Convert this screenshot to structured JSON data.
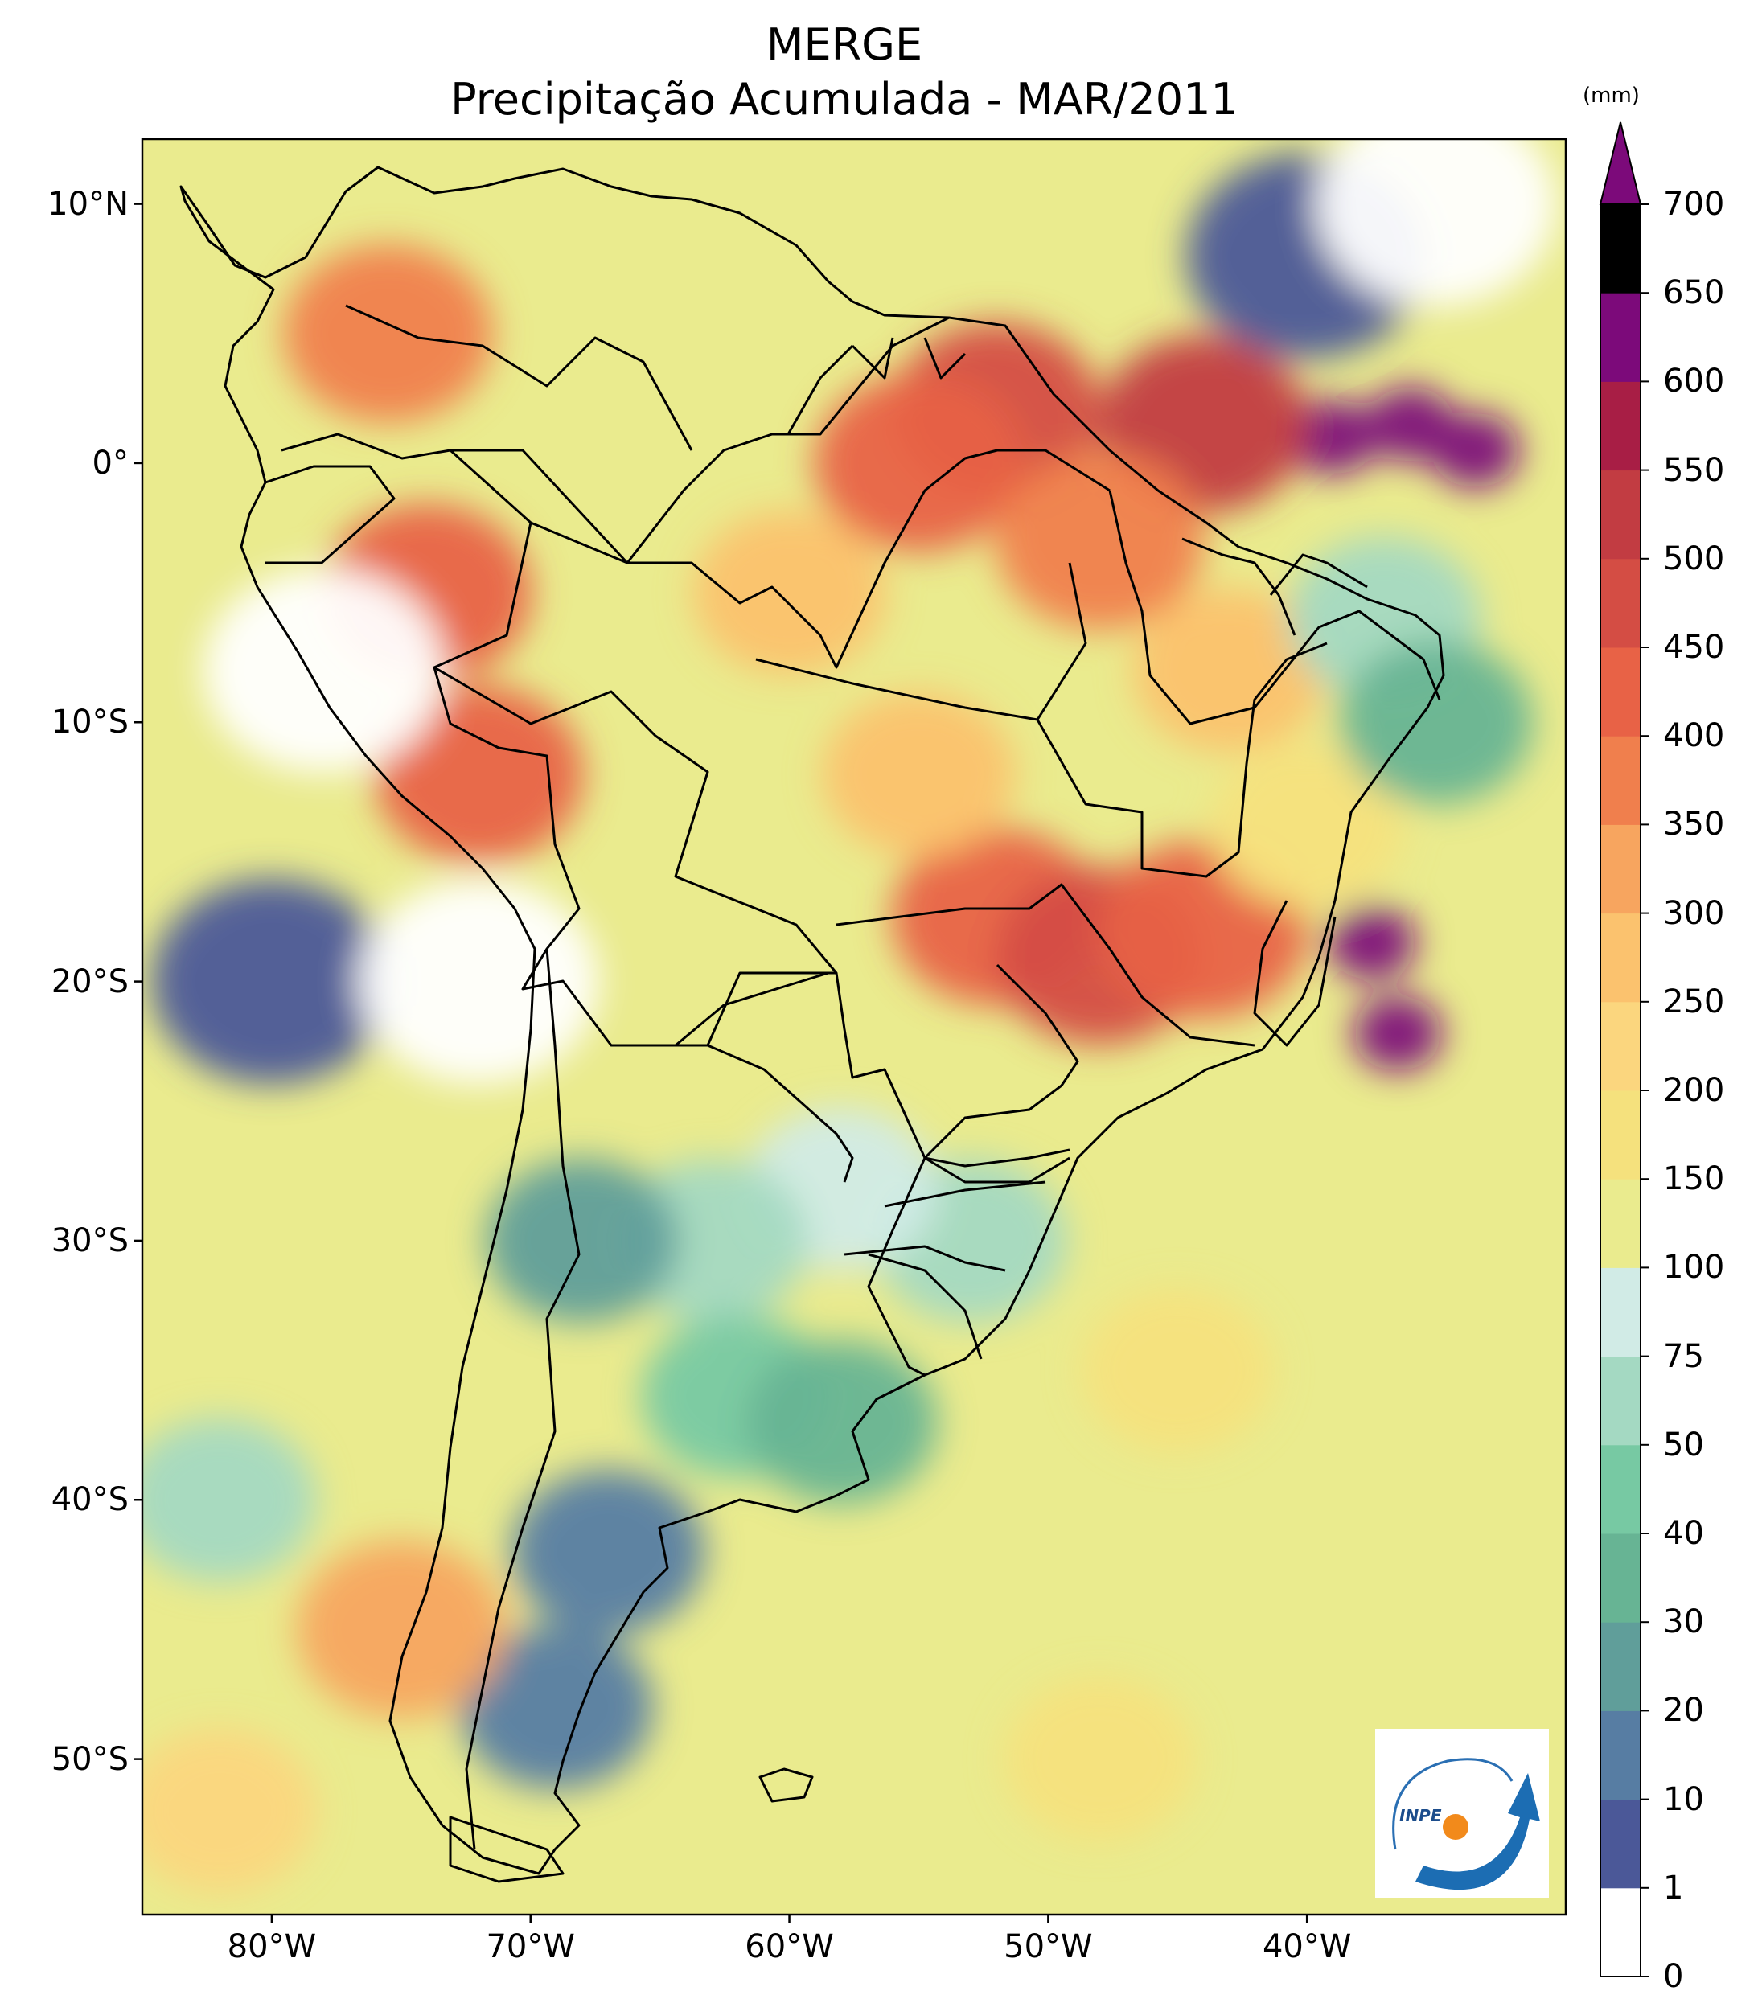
{
  "map": {
    "title": "MERGE",
    "subtitle": "Precipitação Acumulada - MAR/2011",
    "latitude_labels": [
      "10°N",
      "0°",
      "10°S",
      "20°S",
      "30°S",
      "40°S",
      "50°S"
    ],
    "longitude_labels": [
      "80°W",
      "70°W",
      "60°W",
      "50°W",
      "40°W"
    ],
    "extent": {
      "lon_min": -85,
      "lon_max": -30,
      "lat_min": -56,
      "lat_max": 12.5
    },
    "logo_text": "INPE"
  },
  "colorbar": {
    "unit": "(mm)",
    "ticks": [
      "0",
      "1",
      "10",
      "20",
      "30",
      "40",
      "50",
      "75",
      "100",
      "150",
      "200",
      "250",
      "300",
      "350",
      "400",
      "450",
      "500",
      "550",
      "600",
      "650",
      "700"
    ],
    "colors": [
      "#ffffff",
      "#4b5898",
      "#577da3",
      "#609e9a",
      "#67b494",
      "#77c9a3",
      "#a4d9c2",
      "#d1ebe6",
      "#eaeb8e",
      "#f5e17d",
      "#fbd67e",
      "#fbc26e",
      "#f7a55f",
      "#f07f4d",
      "#e86246",
      "#d44d44",
      "#c23c42",
      "#a81e45",
      "#7c0a7a"
    ]
  },
  "chart_data": {
    "type": "heatmap",
    "title": "MERGE",
    "subtitle": "Precipitação Acumulada - MAR/2011",
    "xlabel": "",
    "ylabel": "",
    "xlim": [
      -85,
      -30
    ],
    "ylim": [
      -56,
      12.5
    ],
    "legend": "right colorbar",
    "levels_mm": [
      0,
      1,
      10,
      20,
      30,
      40,
      50,
      75,
      100,
      150,
      200,
      250,
      300,
      350,
      400,
      450,
      500,
      550,
      600,
      650,
      700
    ],
    "extend": "max",
    "precipitation_features": [
      {
        "lon": -36,
        "lat": 1.5,
        "value_mm": 700
      },
      {
        "lon": -33.5,
        "lat": 0.5,
        "value_mm": 650
      },
      {
        "lon": -39,
        "lat": 1,
        "value_mm": 600
      },
      {
        "lon": -44,
        "lat": 1.5,
        "value_mm": 500
      },
      {
        "lon": -52,
        "lat": 2,
        "value_mm": 450
      },
      {
        "lon": -55,
        "lat": 0,
        "value_mm": 400
      },
      {
        "lon": -48,
        "lat": -3,
        "value_mm": 380
      },
      {
        "lon": -74,
        "lat": -5,
        "value_mm": 400
      },
      {
        "lon": -72,
        "lat": -12,
        "value_mm": 400
      },
      {
        "lon": -75.5,
        "lat": 5,
        "value_mm": 380
      },
      {
        "lon": -52,
        "lat": -17.5,
        "value_mm": 400
      },
      {
        "lon": -48,
        "lat": -19,
        "value_mm": 450
      },
      {
        "lon": -44,
        "lat": -18,
        "value_mm": 400
      },
      {
        "lon": -37.5,
        "lat": -18.5,
        "value_mm": 600
      },
      {
        "lon": -36.5,
        "lat": -22,
        "value_mm": 650
      },
      {
        "lon": -60,
        "lat": -5,
        "value_mm": 280
      },
      {
        "lon": -55,
        "lat": -12,
        "value_mm": 280
      },
      {
        "lon": -43,
        "lat": -8,
        "value_mm": 250
      },
      {
        "lon": -40,
        "lat": -14,
        "value_mm": 150
      },
      {
        "lon": -37,
        "lat": -6,
        "value_mm": 60
      },
      {
        "lon": -35,
        "lat": -10,
        "value_mm": 30
      },
      {
        "lon": -53,
        "lat": -30,
        "value_mm": 60
      },
      {
        "lon": -58,
        "lat": -28,
        "value_mm": 75
      },
      {
        "lon": -63,
        "lat": -30,
        "value_mm": 50
      },
      {
        "lon": -62,
        "lat": -36,
        "value_mm": 40
      },
      {
        "lon": -58,
        "lat": -37,
        "value_mm": 30
      },
      {
        "lon": -68,
        "lat": -30,
        "value_mm": 25
      },
      {
        "lon": -67,
        "lat": -42,
        "value_mm": 10
      },
      {
        "lon": -69,
        "lat": -48,
        "value_mm": 10
      },
      {
        "lon": -75,
        "lat": -45,
        "value_mm": 300
      },
      {
        "lon": -80,
        "lat": -20,
        "value_mm": 5
      },
      {
        "lon": -72,
        "lat": -20,
        "value_mm": 0
      },
      {
        "lon": -78,
        "lat": -8,
        "value_mm": 0
      },
      {
        "lon": -40,
        "lat": 8,
        "value_mm": 5
      },
      {
        "lon": -35,
        "lat": 10,
        "value_mm": 0
      },
      {
        "lon": -45,
        "lat": -35,
        "value_mm": 170
      },
      {
        "lon": -48,
        "lat": -50,
        "value_mm": 170
      },
      {
        "lon": -82,
        "lat": -40,
        "value_mm": 50
      },
      {
        "lon": -82,
        "lat": -52,
        "value_mm": 200
      }
    ]
  }
}
